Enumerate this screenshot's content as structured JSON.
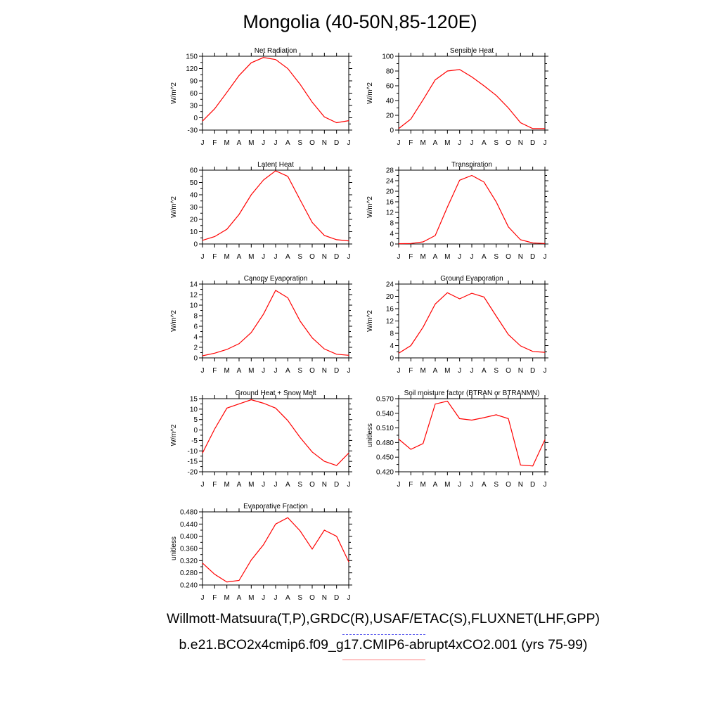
{
  "title": "Mongolia (40-50N,85-120E)",
  "colors": {
    "series": "#ff0000",
    "obs_legend": "#5555ee",
    "model_legend": "#ff8080"
  },
  "legend": {
    "obs_label": "Willmott-Matsuura(T,P),GRDC(R),USAF/ETAC(S),FLUXNET(LHF,GPP)",
    "model_label": "b.e21.BCO2x4cmip6.f09_g17.CMIP6-abrupt4xCO2.001 (yrs 75-99)"
  },
  "chart_data": [
    {
      "type": "line",
      "title": "Net Radiation",
      "ylabel": "W/m^2",
      "categories": [
        "J",
        "F",
        "M",
        "A",
        "M",
        "J",
        "J",
        "A",
        "S",
        "O",
        "N",
        "D",
        "J"
      ],
      "yticks": [
        -30,
        0,
        30,
        60,
        90,
        120,
        150
      ],
      "ylim": [
        -30,
        150
      ],
      "series": [
        {
          "name": "b.e21.BCO2x4cmip6.f09_g17.CMIP6-abrupt4xCO2.001",
          "values": [
            -8,
            22,
            62,
            103,
            134,
            147,
            142,
            120,
            82,
            38,
            2,
            -12,
            -7
          ]
        }
      ]
    },
    {
      "type": "line",
      "title": "Sensible Heat",
      "ylabel": "W/m^2",
      "categories": [
        "J",
        "F",
        "M",
        "A",
        "M",
        "J",
        "J",
        "A",
        "S",
        "O",
        "N",
        "D",
        "J"
      ],
      "yticks": [
        0,
        20,
        40,
        60,
        80,
        100
      ],
      "ylim": [
        0,
        100
      ],
      "series": [
        {
          "name": "b.e21.BCO2x4cmip6.f09_g17.CMIP6-abrupt4xCO2.001",
          "values": [
            2,
            15,
            41,
            68,
            80,
            82,
            72,
            60,
            47,
            30,
            10,
            2,
            2
          ]
        }
      ]
    },
    {
      "type": "line",
      "title": "Latent Heat",
      "ylabel": "W/m^2",
      "categories": [
        "J",
        "F",
        "M",
        "A",
        "M",
        "J",
        "J",
        "A",
        "S",
        "O",
        "N",
        "D",
        "J"
      ],
      "yticks": [
        0,
        10,
        20,
        30,
        40,
        50,
        60
      ],
      "ylim": [
        0,
        60
      ],
      "series": [
        {
          "name": "b.e21.BCO2x4cmip6.f09_g17.CMIP6-abrupt4xCO2.001",
          "values": [
            3,
            6,
            12,
            24,
            40,
            52,
            59.5,
            55,
            36,
            17.5,
            7,
            3.5,
            2.5
          ]
        }
      ]
    },
    {
      "type": "line",
      "title": "Transpiration",
      "ylabel": "W/m^2",
      "categories": [
        "J",
        "F",
        "M",
        "A",
        "M",
        "J",
        "J",
        "A",
        "S",
        "O",
        "N",
        "D",
        "J"
      ],
      "yticks": [
        0,
        4,
        8,
        12,
        16,
        20,
        24,
        28
      ],
      "ylim": [
        0,
        28
      ],
      "series": [
        {
          "name": "b.e21.BCO2x4cmip6.f09_g17.CMIP6-abrupt4xCO2.001",
          "values": [
            0.1,
            0.2,
            0.8,
            3.2,
            14,
            24.2,
            26,
            23.5,
            16,
            6.5,
            1.6,
            0.4,
            0.2
          ]
        }
      ]
    },
    {
      "type": "line",
      "title": "Canopy Evaporation",
      "ylabel": "W/m^2",
      "categories": [
        "J",
        "F",
        "M",
        "A",
        "M",
        "J",
        "J",
        "A",
        "S",
        "O",
        "N",
        "D",
        "J"
      ],
      "yticks": [
        0,
        2,
        4,
        6,
        8,
        10,
        12,
        14
      ],
      "ylim": [
        0,
        14
      ],
      "series": [
        {
          "name": "b.e21.BCO2x4cmip6.f09_g17.CMIP6-abrupt4xCO2.001",
          "values": [
            0.4,
            0.9,
            1.6,
            2.7,
            4.8,
            8.3,
            12.8,
            11.4,
            7,
            3.8,
            1.7,
            0.7,
            0.5
          ]
        }
      ]
    },
    {
      "type": "line",
      "title": "Ground Evaporation",
      "ylabel": "W/m^2",
      "categories": [
        "J",
        "F",
        "M",
        "A",
        "M",
        "J",
        "J",
        "A",
        "S",
        "O",
        "N",
        "D",
        "J"
      ],
      "yticks": [
        0,
        4,
        8,
        12,
        16,
        20,
        24
      ],
      "ylim": [
        0,
        24
      ],
      "series": [
        {
          "name": "b.e21.BCO2x4cmip6.f09_g17.CMIP6-abrupt4xCO2.001",
          "values": [
            1.5,
            4,
            10,
            17.5,
            21.2,
            19.2,
            21,
            19.8,
            13.6,
            7.6,
            3.9,
            2.1,
            1.8
          ]
        }
      ]
    },
    {
      "type": "line",
      "title": "Ground Heat + Snow Melt",
      "ylabel": "W/m^2",
      "categories": [
        "J",
        "F",
        "M",
        "A",
        "M",
        "J",
        "J",
        "A",
        "S",
        "O",
        "N",
        "D",
        "J"
      ],
      "yticks": [
        -20,
        -15,
        -10,
        -5,
        0,
        5,
        10,
        15
      ],
      "ylim": [
        -20,
        15
      ],
      "series": [
        {
          "name": "b.e21.BCO2x4cmip6.f09_g17.CMIP6-abrupt4xCO2.001",
          "values": [
            -11,
            0.5,
            10.5,
            12.5,
            14.5,
            12.8,
            10.5,
            4.5,
            -3.5,
            -10.5,
            -15,
            -17,
            -11
          ]
        }
      ]
    },
    {
      "type": "line",
      "title": "Soil moisture factor (BTRAN or BTRANMN)",
      "ylabel": "unitless",
      "categories": [
        "J",
        "F",
        "M",
        "A",
        "M",
        "J",
        "J",
        "A",
        "S",
        "O",
        "N",
        "D",
        "J"
      ],
      "yticks": [
        "0.420",
        "0.450",
        "0.480",
        "0.510",
        "0.540",
        "0.570"
      ],
      "ylim": [
        0.42,
        0.57
      ],
      "series": [
        {
          "name": "b.e21.BCO2x4cmip6.f09_g17.CMIP6-abrupt4xCO2.001",
          "values": [
            0.487,
            0.466,
            0.478,
            0.559,
            0.565,
            0.529,
            0.526,
            0.531,
            0.537,
            0.529,
            0.434,
            0.432,
            0.486
          ]
        }
      ]
    },
    {
      "type": "line",
      "title": "Evaporative Fraction",
      "ylabel": "unitless",
      "categories": [
        "J",
        "F",
        "M",
        "A",
        "M",
        "J",
        "J",
        "A",
        "S",
        "O",
        "N",
        "D",
        "J"
      ],
      "yticks": [
        "0.240",
        "0.280",
        "0.320",
        "0.360",
        "0.400",
        "0.440",
        "0.480"
      ],
      "ylim": [
        0.24,
        0.48
      ],
      "series": [
        {
          "name": "b.e21.BCO2x4cmip6.f09_g17.CMIP6-abrupt4xCO2.001",
          "values": [
            0.312,
            0.275,
            0.25,
            0.255,
            0.322,
            0.372,
            0.44,
            0.461,
            0.418,
            0.358,
            0.42,
            0.4,
            0.316
          ]
        }
      ]
    }
  ]
}
